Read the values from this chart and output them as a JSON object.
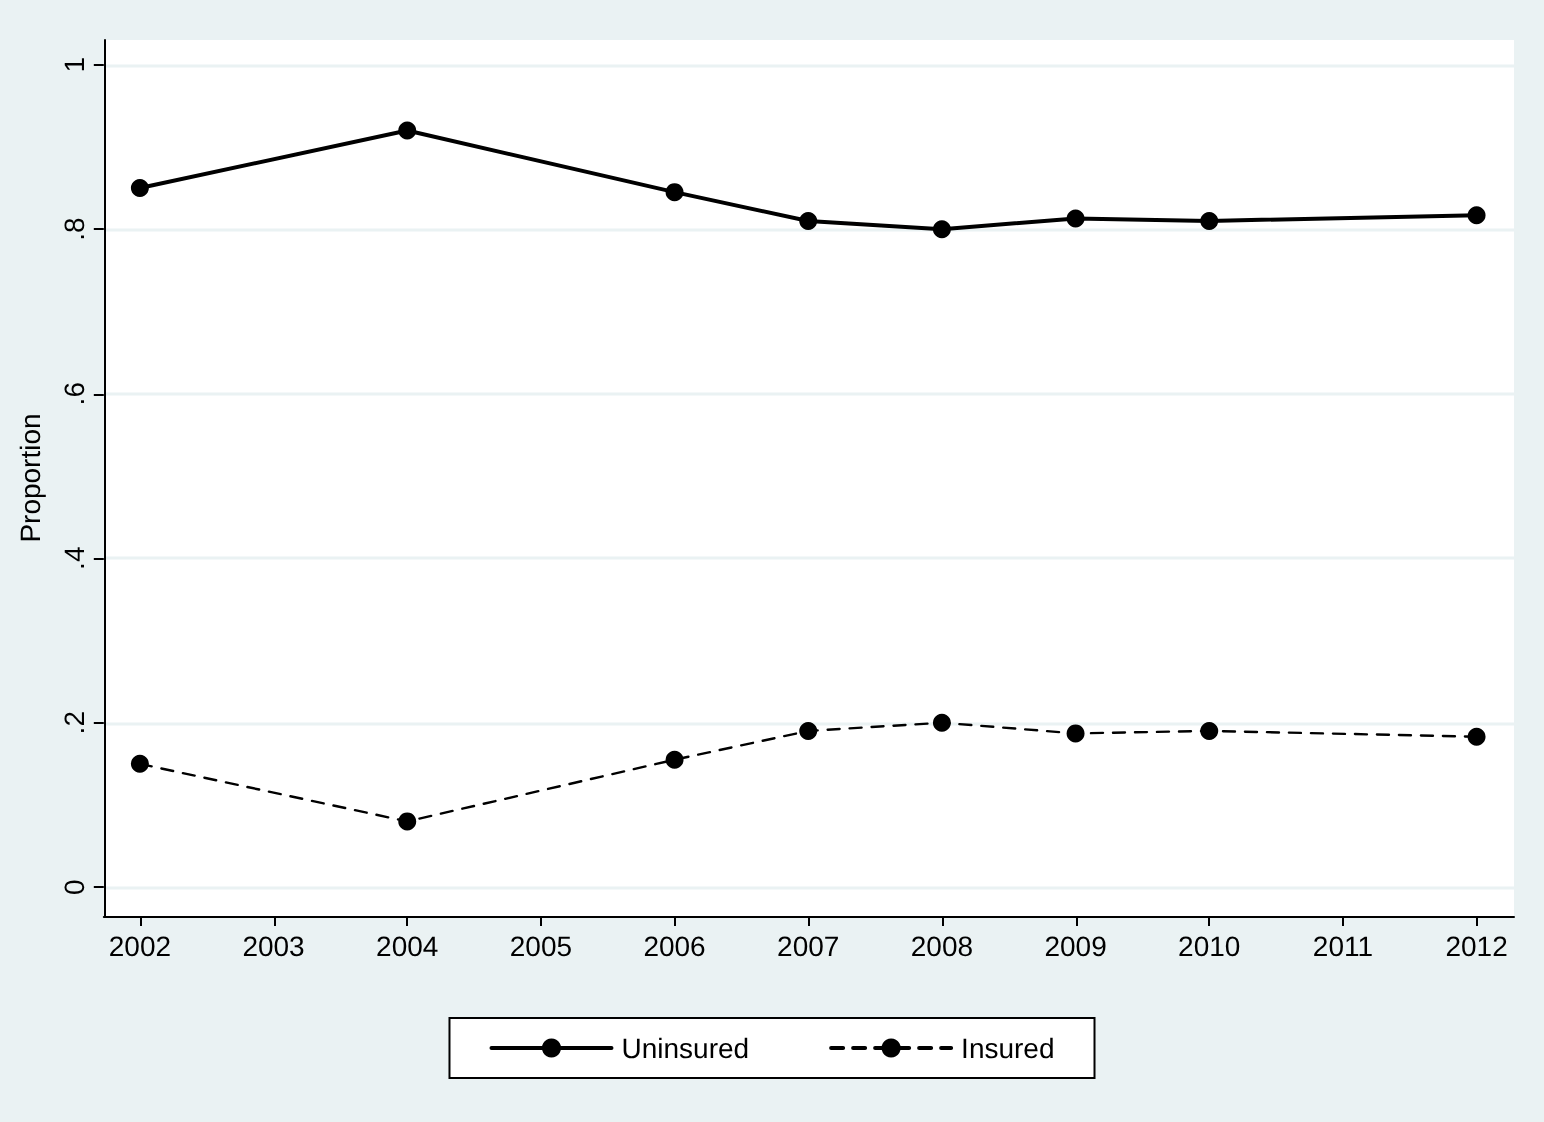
{
  "chart_data": {
    "type": "line",
    "ylabel": "Proportion",
    "x": [
      2002,
      2004,
      2006,
      2007,
      2008,
      2009,
      2010,
      2012
    ],
    "series": [
      {
        "name": "Uninsured",
        "color": "#000000",
        "line_style": "solid",
        "values": [
          0.85,
          0.92,
          0.845,
          0.81,
          0.8,
          0.813,
          0.81,
          0.817
        ]
      },
      {
        "name": "Insured",
        "color": "#000000",
        "line_style": "dashed",
        "values": [
          0.15,
          0.08,
          0.155,
          0.19,
          0.2,
          0.187,
          0.19,
          0.183
        ]
      }
    ],
    "xlim": [
      2001.73,
      2012.28
    ],
    "xticks": [
      2002,
      2003,
      2004,
      2005,
      2006,
      2007,
      2008,
      2009,
      2010,
      2011,
      2012
    ],
    "ylim": [
      -0.035,
      1.03
    ],
    "yticks": [
      {
        "value": 0,
        "label": "0"
      },
      {
        "value": 0.2,
        "label": ".2"
      },
      {
        "value": 0.4,
        "label": ".4"
      },
      {
        "value": 0.6,
        "label": ".6"
      },
      {
        "value": 0.8,
        "label": ".8"
      },
      {
        "value": 1,
        "label": "1"
      }
    ],
    "grid": "y",
    "legend": "bottom",
    "marker": "circle"
  }
}
